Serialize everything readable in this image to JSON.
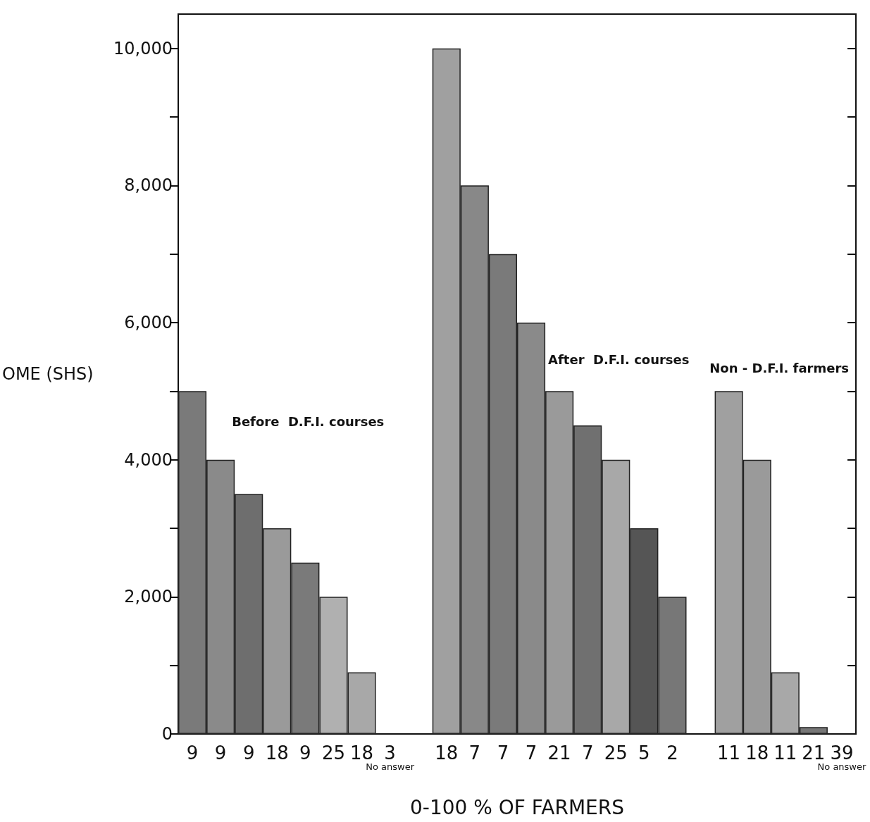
{
  "chart_data": {
    "type": "bar",
    "ylabel": "OME (SHS)",
    "xlabel": "0-100 % OF FARMERS",
    "annotations": [
      "Before  D.F.I. courses",
      "After  D.F.I. courses",
      "Non - D.F.I. farmers"
    ],
    "categories": [
      "9",
      "9",
      "9",
      "18",
      "9",
      "25",
      "18",
      "3\nNo answer",
      null,
      "18",
      "7",
      "7",
      "7",
      "21",
      "7",
      "25",
      "5",
      "2",
      null,
      "11",
      "18",
      "11",
      "21",
      "39\nNo answer"
    ],
    "values": [
      5000,
      4000,
      3500,
      3000,
      2500,
      2000,
      900,
      null,
      null,
      10000,
      8000,
      7000,
      6000,
      5000,
      4500,
      4000,
      3000,
      2000,
      null,
      5000,
      4000,
      900,
      100,
      null
    ],
    "colors": [
      "#7a7a7a",
      "#8a8a8a",
      "#6e6e6e",
      "#9a9a9a",
      "#7a7a7a",
      "#b0b0b0",
      "#a8a8a8",
      "#a8a8a8",
      "#ffffff",
      "#a0a0a0",
      "#888888",
      "#7a7a7a",
      "#8a8a8a",
      "#9a9a9a",
      "#707070",
      "#a8a8a8",
      "#555555",
      "#777777",
      "#ffffff",
      "#a0a0a0",
      "#9a9a9a",
      "#a8a8a8",
      "#777777",
      "#a8a8a8"
    ],
    "ylim": [
      0,
      10500
    ],
    "yticks": [
      0,
      {
        "value": 1000,
        "label": null
      },
      {
        "value": 2000,
        "label": "2,000"
      },
      {
        "value": 3000,
        "label": null
      },
      {
        "value": 4000,
        "label": "4,000"
      },
      {
        "value": 5000,
        "label": null
      },
      {
        "value": 6000,
        "label": "6,000"
      },
      {
        "value": 7000,
        "label": null
      },
      {
        "value": 8000,
        "label": "8,000"
      },
      {
        "value": 9000,
        "label": null
      },
      {
        "value": 10000,
        "label": "10,000"
      }
    ],
    "grid": false
  }
}
